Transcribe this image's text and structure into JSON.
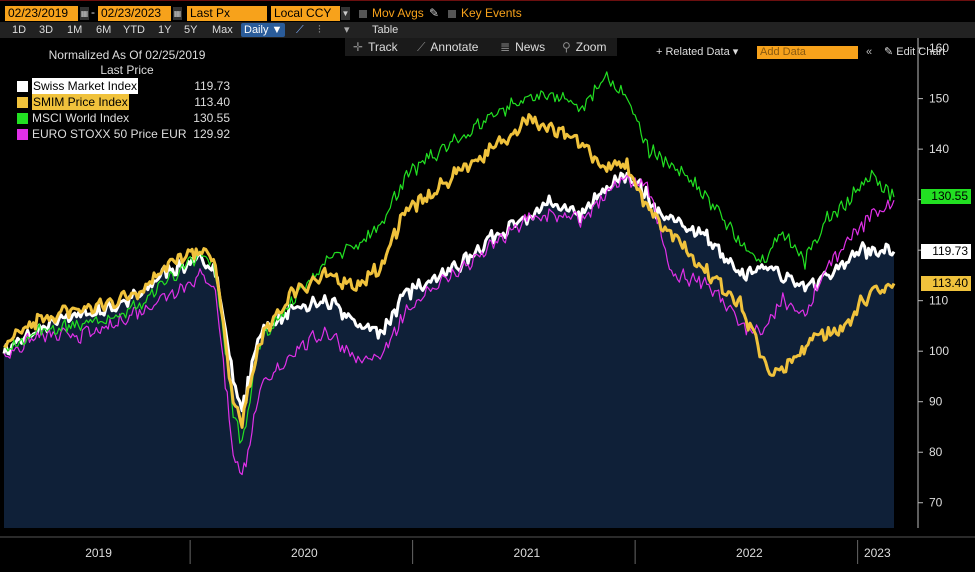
{
  "toolbar": {
    "start_date": "02/23/2019",
    "end_date": "02/23/2023",
    "separator": "-",
    "field": "Last Px",
    "currency": "Local CCY",
    "mov_avgs": "Mov Avgs",
    "key_events": "Key Events"
  },
  "timeframes": [
    "1D",
    "3D",
    "1M",
    "6M",
    "YTD",
    "1Y",
    "5Y",
    "Max"
  ],
  "frequency": "Daily",
  "table_label": "Table",
  "related_data": "+ Related Data",
  "add_data_placeholder": "Add Data",
  "edit_chart": "Edit Chart",
  "tools": {
    "track": "Track",
    "annotate": "Annotate",
    "news": "News",
    "zoom": "Zoom"
  },
  "legend": {
    "title": "Normalized As Of 02/25/2019",
    "subtitle": "Last Price"
  },
  "chart_data": {
    "type": "line",
    "title": "Normalized As Of 02/25/2019",
    "ylim": [
      65,
      162
    ],
    "y_ticks": [
      70,
      80,
      90,
      100,
      110,
      120,
      130,
      140,
      150,
      160
    ],
    "x_labels": [
      "2019",
      "2020",
      "2021",
      "2022",
      "2023"
    ],
    "x_range": [
      2019.15,
      2023.15
    ],
    "year_boundaries": [
      2020,
      2021,
      2022,
      2023
    ],
    "grid": false,
    "legend_position": "top-left",
    "series": [
      {
        "name": "Swiss Market Index",
        "color": "#ffffff",
        "last": "119.73",
        "width": 3,
        "fill": true,
        "points": [
          [
            2019.15,
            100
          ],
          [
            2019.3,
            104
          ],
          [
            2019.45,
            107
          ],
          [
            2019.6,
            108
          ],
          [
            2019.75,
            111
          ],
          [
            2019.88,
            116
          ],
          [
            2020.04,
            118
          ],
          [
            2020.1,
            116
          ],
          [
            2020.18,
            95
          ],
          [
            2020.22,
            88
          ],
          [
            2020.3,
            104
          ],
          [
            2020.45,
            108
          ],
          [
            2020.6,
            110
          ],
          [
            2020.75,
            105
          ],
          [
            2020.85,
            104
          ],
          [
            2020.95,
            111
          ],
          [
            2021.05,
            114
          ],
          [
            2021.2,
            117
          ],
          [
            2021.35,
            123
          ],
          [
            2021.5,
            126
          ],
          [
            2021.6,
            129
          ],
          [
            2021.75,
            127
          ],
          [
            2021.85,
            132
          ],
          [
            2021.95,
            135
          ],
          [
            2022.0,
            133
          ],
          [
            2022.1,
            127
          ],
          [
            2022.2,
            125
          ],
          [
            2022.3,
            123
          ],
          [
            2022.45,
            115
          ],
          [
            2022.6,
            117
          ],
          [
            2022.75,
            112
          ],
          [
            2022.9,
            117
          ],
          [
            2023.0,
            120
          ],
          [
            2023.15,
            119.7
          ]
        ]
      },
      {
        "name": "SMIM Price Index",
        "color": "#f0c23c",
        "last": "113.40",
        "width": 3,
        "fill": false,
        "points": [
          [
            2019.15,
            101
          ],
          [
            2019.3,
            106
          ],
          [
            2019.45,
            108
          ],
          [
            2019.6,
            109
          ],
          [
            2019.75,
            112
          ],
          [
            2019.88,
            117
          ],
          [
            2020.04,
            120
          ],
          [
            2020.1,
            117
          ],
          [
            2020.18,
            90
          ],
          [
            2020.22,
            86
          ],
          [
            2020.3,
            102
          ],
          [
            2020.45,
            112
          ],
          [
            2020.6,
            115
          ],
          [
            2020.75,
            113
          ],
          [
            2020.85,
            117
          ],
          [
            2020.95,
            128
          ],
          [
            2021.05,
            130
          ],
          [
            2021.2,
            136
          ],
          [
            2021.35,
            140
          ],
          [
            2021.5,
            146
          ],
          [
            2021.6,
            144
          ],
          [
            2021.75,
            141
          ],
          [
            2021.85,
            136
          ],
          [
            2021.95,
            137
          ],
          [
            2022.05,
            128
          ],
          [
            2022.2,
            121
          ],
          [
            2022.3,
            116
          ],
          [
            2022.45,
            110
          ],
          [
            2022.6,
            95
          ],
          [
            2022.7,
            98
          ],
          [
            2022.8,
            104
          ],
          [
            2022.9,
            103
          ],
          [
            2023.0,
            110
          ],
          [
            2023.15,
            113.4
          ]
        ]
      },
      {
        "name": "MSCI World Index",
        "color": "#22e022",
        "last": "130.55",
        "width": 1.2,
        "fill": false,
        "points": [
          [
            2019.15,
            100
          ],
          [
            2019.3,
            104
          ],
          [
            2019.45,
            105
          ],
          [
            2019.6,
            106
          ],
          [
            2019.75,
            109
          ],
          [
            2019.88,
            114
          ],
          [
            2020.04,
            119
          ],
          [
            2020.1,
            116
          ],
          [
            2020.18,
            88
          ],
          [
            2020.22,
            82
          ],
          [
            2020.3,
            102
          ],
          [
            2020.45,
            110
          ],
          [
            2020.6,
            118
          ],
          [
            2020.75,
            121
          ],
          [
            2020.85,
            126
          ],
          [
            2020.95,
            134
          ],
          [
            2021.05,
            138
          ],
          [
            2021.2,
            142
          ],
          [
            2021.35,
            147
          ],
          [
            2021.5,
            150
          ],
          [
            2021.6,
            151
          ],
          [
            2021.75,
            148
          ],
          [
            2021.85,
            154
          ],
          [
            2021.95,
            150
          ],
          [
            2022.05,
            140
          ],
          [
            2022.15,
            137
          ],
          [
            2022.3,
            131
          ],
          [
            2022.45,
            122
          ],
          [
            2022.55,
            117
          ],
          [
            2022.65,
            124
          ],
          [
            2022.75,
            118
          ],
          [
            2022.85,
            126
          ],
          [
            2022.95,
            130
          ],
          [
            2023.05,
            135
          ],
          [
            2023.15,
            130.5
          ]
        ]
      },
      {
        "name": "EURO STOXX 50 Price EUR",
        "color": "#e030e8",
        "last": "129.92",
        "width": 1.2,
        "fill": false,
        "points": [
          [
            2019.15,
            99
          ],
          [
            2019.3,
            103
          ],
          [
            2019.45,
            103
          ],
          [
            2019.6,
            104
          ],
          [
            2019.75,
            108
          ],
          [
            2019.88,
            111
          ],
          [
            2020.04,
            115
          ],
          [
            2020.1,
            112
          ],
          [
            2020.18,
            80
          ],
          [
            2020.22,
            75
          ],
          [
            2020.3,
            92
          ],
          [
            2020.45,
            100
          ],
          [
            2020.6,
            104
          ],
          [
            2020.75,
            98
          ],
          [
            2020.85,
            99
          ],
          [
            2020.95,
            107
          ],
          [
            2021.05,
            112
          ],
          [
            2021.2,
            116
          ],
          [
            2021.35,
            121
          ],
          [
            2021.5,
            126
          ],
          [
            2021.6,
            127
          ],
          [
            2021.75,
            126
          ],
          [
            2021.85,
            131
          ],
          [
            2021.95,
            134
          ],
          [
            2022.05,
            132
          ],
          [
            2022.15,
            115
          ],
          [
            2022.3,
            114
          ],
          [
            2022.45,
            106
          ],
          [
            2022.55,
            103
          ],
          [
            2022.65,
            110
          ],
          [
            2022.75,
            107
          ],
          [
            2022.85,
            117
          ],
          [
            2022.95,
            122
          ],
          [
            2023.05,
            127
          ],
          [
            2023.15,
            129.9
          ]
        ]
      }
    ]
  }
}
